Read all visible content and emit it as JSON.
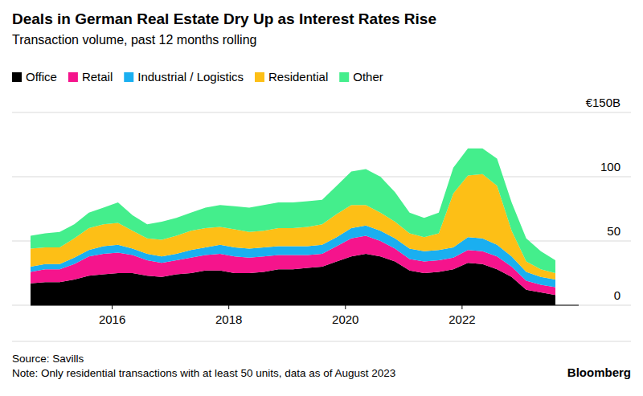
{
  "chart_data": {
    "type": "area",
    "stacked": true,
    "title": "Deals in German Real Estate Dry Up as Interest Rates Rise",
    "subtitle": "Transaction volume, past 12 months rolling",
    "source": "Source: Savills",
    "note": "Note: Only residential transactions with at least 50 units, data as of August 2023",
    "credit": "Bloomberg",
    "x": [
      2014.6,
      2014.85,
      2015.1,
      2015.35,
      2015.6,
      2015.85,
      2016.1,
      2016.35,
      2016.6,
      2016.85,
      2017.1,
      2017.35,
      2017.6,
      2017.85,
      2018.1,
      2018.35,
      2018.6,
      2018.85,
      2019.1,
      2019.35,
      2019.6,
      2019.85,
      2020.1,
      2020.35,
      2020.6,
      2020.85,
      2021.1,
      2021.35,
      2021.6,
      2021.85,
      2022.1,
      2022.35,
      2022.6,
      2022.85,
      2023.1,
      2023.35,
      2023.6
    ],
    "xlim": [
      2014.6,
      2024
    ],
    "xticks": [
      2016,
      2018,
      2020,
      2022
    ],
    "ylim": [
      0,
      150
    ],
    "yticks": [
      0,
      50,
      100,
      {
        "value": 150,
        "label": "€150B"
      }
    ],
    "grid": true,
    "legend": "top",
    "series": [
      {
        "name": "Office",
        "color": "#000000",
        "values": [
          17,
          18,
          18,
          20,
          23,
          24,
          25,
          25,
          23,
          22,
          24,
          25,
          27,
          27,
          25,
          25,
          26,
          28,
          28,
          29,
          30,
          34,
          38,
          40,
          38,
          34,
          27,
          25,
          26,
          28,
          33,
          32,
          28,
          22,
          12,
          10,
          8
        ]
      },
      {
        "name": "Retail",
        "color": "#f5148c",
        "values": [
          9,
          10,
          10,
          12,
          15,
          16,
          16,
          14,
          12,
          11,
          11,
          12,
          12,
          13,
          13,
          12,
          12,
          11,
          11,
          10,
          10,
          12,
          14,
          14,
          12,
          10,
          9,
          9,
          9,
          9,
          10,
          10,
          10,
          8,
          7,
          6,
          6
        ]
      },
      {
        "name": "Industrial / Logistics",
        "color": "#1aaff0",
        "values": [
          4,
          4,
          4,
          5,
          5,
          6,
          6,
          5,
          5,
          5,
          5,
          6,
          6,
          7,
          7,
          7,
          7,
          7,
          7,
          7,
          7,
          7,
          8,
          8,
          8,
          8,
          8,
          8,
          8,
          8,
          10,
          10,
          9,
          8,
          7,
          6,
          6
        ]
      },
      {
        "name": "Residential",
        "color": "#fdbf16",
        "values": [
          14,
          13,
          13,
          15,
          17,
          17,
          17,
          14,
          12,
          13,
          14,
          15,
          15,
          14,
          14,
          13,
          13,
          14,
          14,
          15,
          16,
          18,
          18,
          16,
          14,
          13,
          12,
          11,
          13,
          42,
          48,
          50,
          46,
          20,
          8,
          6,
          5
        ]
      },
      {
        "name": "Other",
        "color": "#44ee8c",
        "values": [
          10,
          11,
          12,
          11,
          12,
          13,
          16,
          12,
          11,
          14,
          14,
          14,
          16,
          17,
          18,
          19,
          20,
          20,
          20,
          20,
          19,
          22,
          26,
          28,
          28,
          23,
          16,
          15,
          16,
          20,
          21,
          20,
          21,
          22,
          18,
          14,
          10
        ]
      }
    ]
  }
}
